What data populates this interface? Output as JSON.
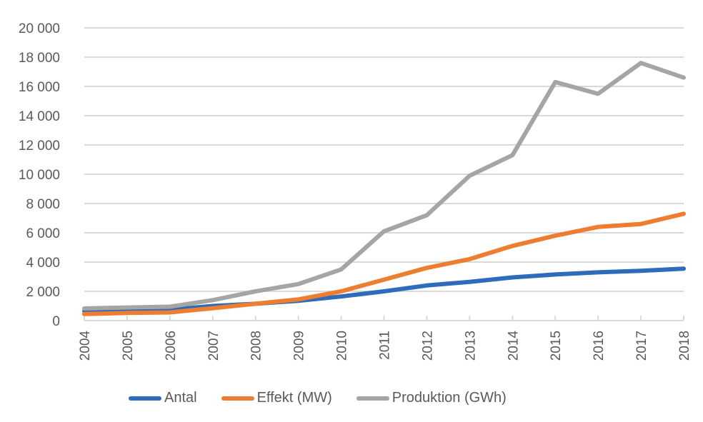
{
  "chart_data": {
    "type": "line",
    "title": "",
    "xlabel": "",
    "ylabel": "",
    "x": [
      "2004",
      "2005",
      "2006",
      "2007",
      "2008",
      "2009",
      "2010",
      "2011",
      "2012",
      "2013",
      "2014",
      "2015",
      "2016",
      "2017",
      "2018"
    ],
    "ylim": [
      0,
      20000
    ],
    "yticks": [
      0,
      2000,
      4000,
      6000,
      8000,
      10000,
      12000,
      14000,
      16000,
      18000,
      20000
    ],
    "ytick_labels": [
      "0",
      "2 000",
      "4 000",
      "6 000",
      "8 000",
      "10 000",
      "12 000",
      "14 000",
      "16 000",
      "18 000",
      "20 000"
    ],
    "grid": true,
    "legend_position": "bottom",
    "series": [
      {
        "name": "Antal",
        "color": "#2e6bba",
        "values": [
          650,
          700,
          750,
          1000,
          1150,
          1350,
          1650,
          2000,
          2400,
          2650,
          2950,
          3150,
          3300,
          3400,
          3550
        ]
      },
      {
        "name": "Effekt (MW)",
        "color": "#ed7d31",
        "values": [
          450,
          520,
          560,
          850,
          1150,
          1450,
          2000,
          2800,
          3600,
          4200,
          5100,
          5800,
          6400,
          6600,
          7300
        ]
      },
      {
        "name": "Produktion (GWh)",
        "color": "#a5a5a5",
        "values": [
          830,
          900,
          950,
          1400,
          2000,
          2500,
          3500,
          6100,
          7200,
          9900,
          11300,
          16300,
          15500,
          17600,
          16600
        ]
      }
    ]
  }
}
